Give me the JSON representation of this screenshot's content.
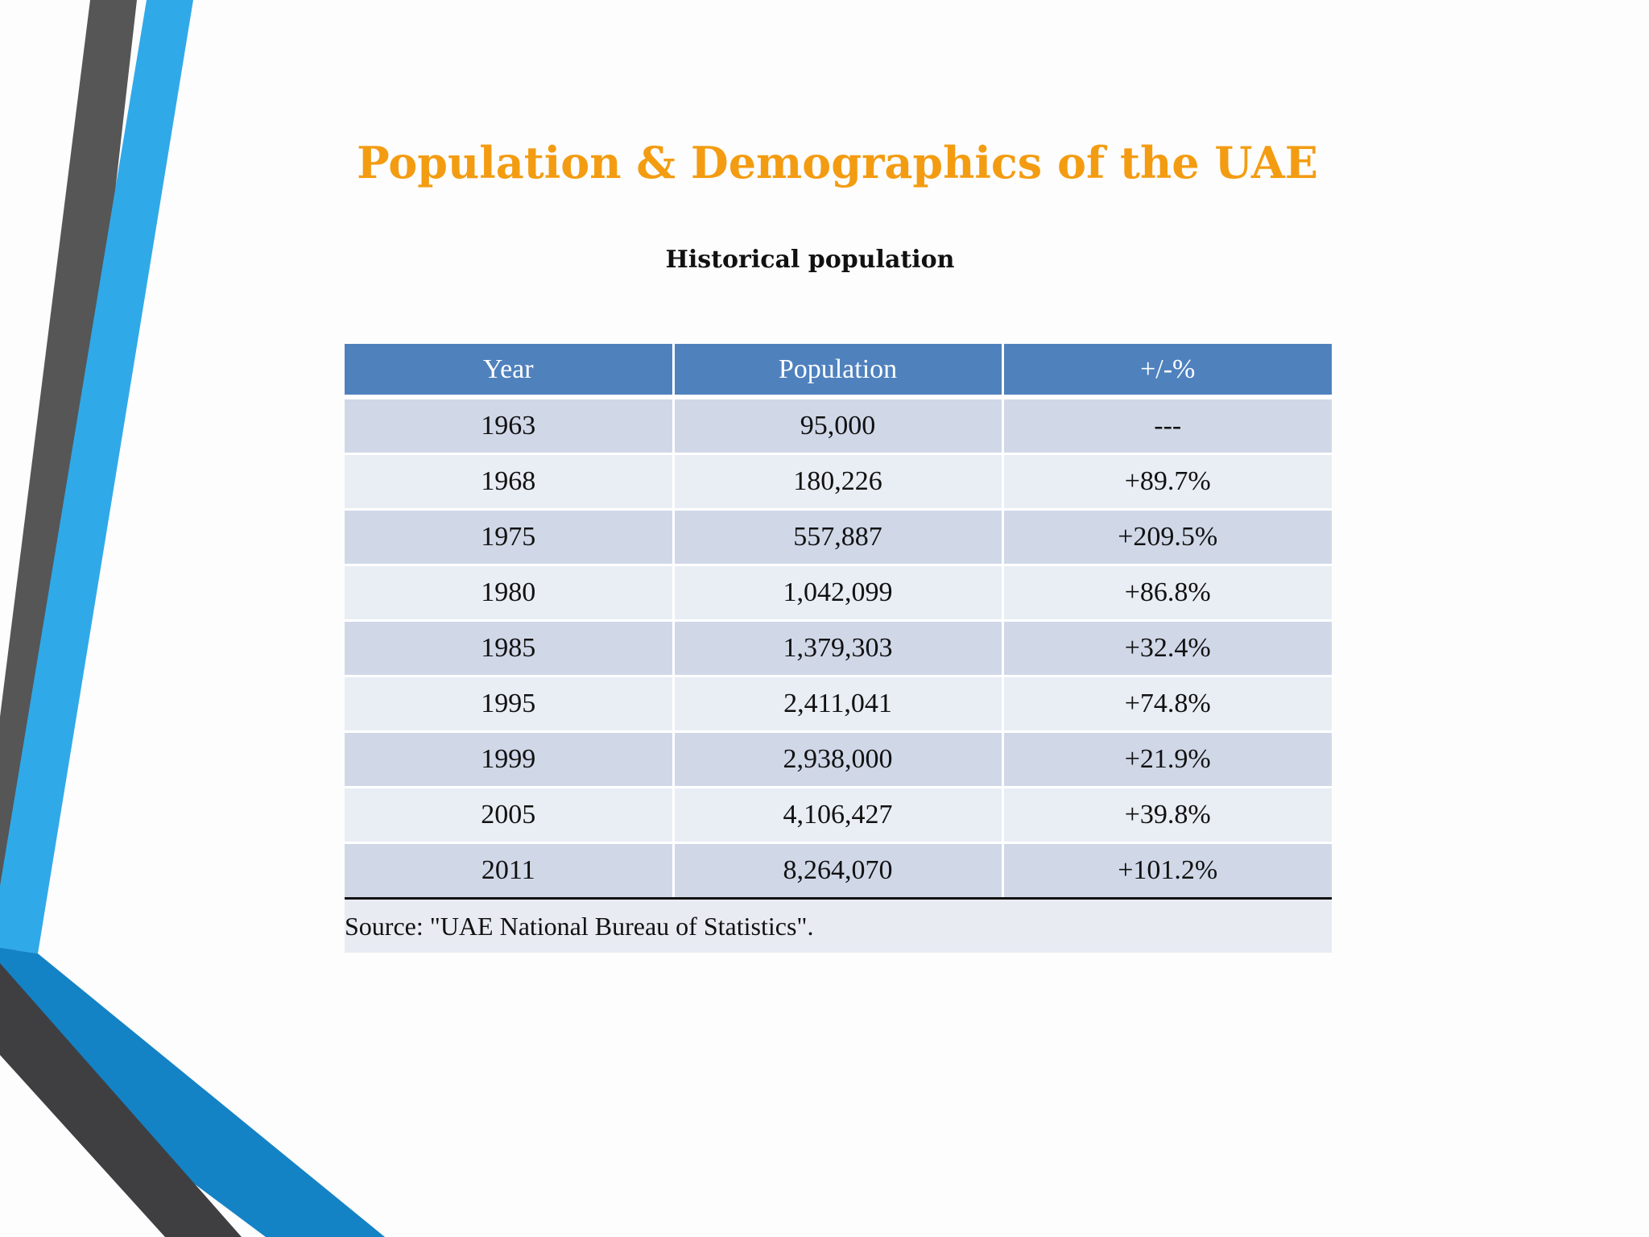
{
  "title": "Population & Demographics of the UAE",
  "subtitle": "Historical population",
  "table": {
    "headers": [
      "Year",
      "Population",
      "+/-%"
    ],
    "rows": [
      [
        "1963",
        "95,000",
        "---"
      ],
      [
        "1968",
        "180,226",
        "+89.7%"
      ],
      [
        "1975",
        "557,887",
        "+209.5%"
      ],
      [
        "1980",
        "1,042,099",
        "+86.8%"
      ],
      [
        "1985",
        "1,379,303",
        "+32.4%"
      ],
      [
        "1995",
        "2,411,041",
        "+74.8%"
      ],
      [
        "1999",
        "2,938,000",
        "+21.9%"
      ],
      [
        "2005",
        "4,106,427",
        "+39.8%"
      ],
      [
        "2011",
        "8,264,070",
        "+101.2%"
      ]
    ],
    "source": "Source:  \"UAE National Bureau of Statistics\"."
  },
  "colors": {
    "title": "#f39c12",
    "header_fill": "#4f81bd",
    "row_odd": "#d0d8e8",
    "row_even": "#e9edf4",
    "accent_blue": "#2fa8e8",
    "accent_gray": "#555555"
  }
}
